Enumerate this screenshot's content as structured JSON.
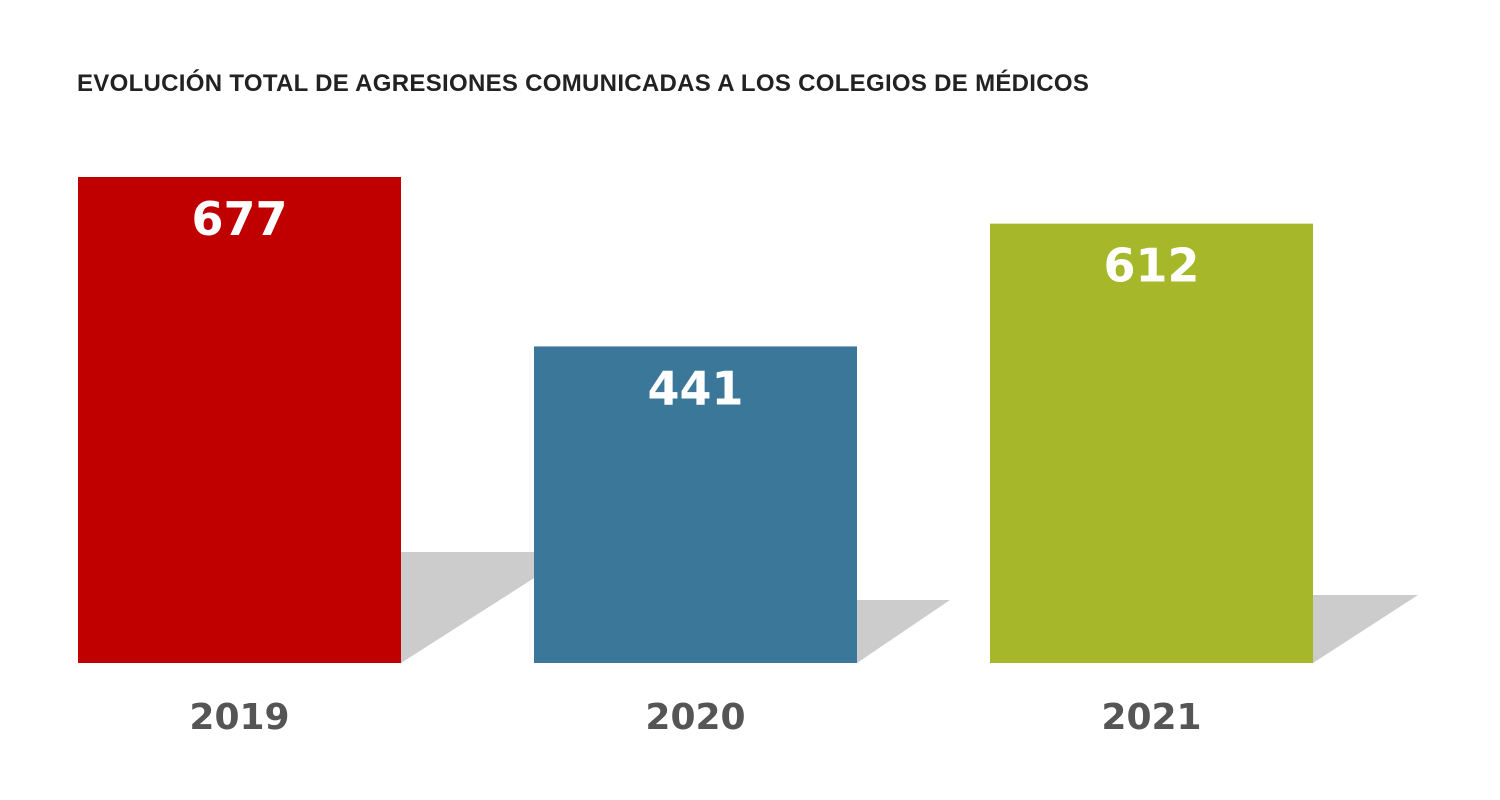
{
  "chart_data": {
    "type": "bar",
    "title": "EVOLUCIÓN TOTAL DE AGRESIONES COMUNICADAS A LOS COLEGIOS DE MÉDICOS",
    "categories": [
      "2019",
      "2020",
      "2021"
    ],
    "values": [
      677,
      441,
      612
    ],
    "colors": [
      "#c00000",
      "#3a7799",
      "#a6b729"
    ],
    "shadow_color": "#cccccc",
    "xlabel": "",
    "ylabel": "",
    "ylim": [
      0,
      677
    ],
    "grid": false,
    "legend": "none"
  }
}
